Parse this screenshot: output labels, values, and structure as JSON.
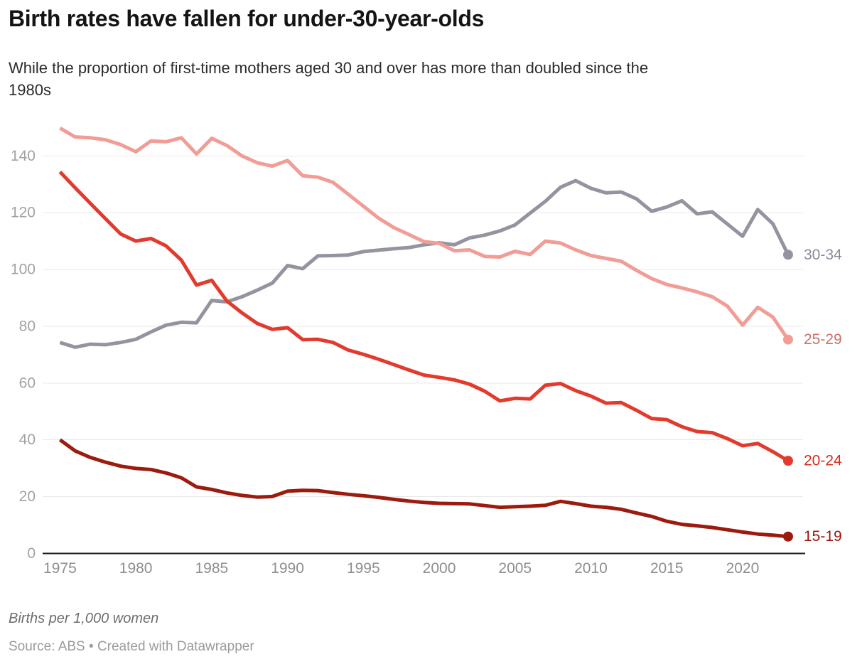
{
  "header": {
    "title": "Birth rates have fallen for under-30-year-olds",
    "subtitle_line1": "While the proportion of first-time mothers aged 30 and over has more than doubled since the",
    "subtitle_line2": "1980s"
  },
  "footer": {
    "note": "Births per 1,000 women",
    "source": "Source: ABS • Created with Datawrapper"
  },
  "chart_data": {
    "type": "line",
    "title": "Birth rates have fallen for under-30-year-olds",
    "subtitle": "While the proportion of first-time mothers aged 30 and over has more than doubled since the 1980s",
    "ylabel": "Births per 1,000 women",
    "xlabel": "",
    "grid": true,
    "legend_position": "end-of-line-labels",
    "ylim": [
      0,
      150
    ],
    "xlim": [
      1975,
      2023
    ],
    "yticks": [
      0,
      20,
      40,
      60,
      80,
      100,
      120,
      140
    ],
    "xticks": [
      1975,
      1980,
      1985,
      1990,
      1995,
      2000,
      2005,
      2010,
      2015,
      2020
    ],
    "x": [
      1975,
      1976,
      1977,
      1978,
      1979,
      1980,
      1981,
      1982,
      1983,
      1984,
      1985,
      1986,
      1987,
      1988,
      1989,
      1990,
      1991,
      1992,
      1993,
      1994,
      1995,
      1996,
      1997,
      1998,
      1999,
      2000,
      2001,
      2002,
      2003,
      2004,
      2005,
      2006,
      2007,
      2008,
      2009,
      2010,
      2011,
      2012,
      2013,
      2014,
      2015,
      2016,
      2017,
      2018,
      2019,
      2020,
      2021,
      2022,
      2023
    ],
    "series": [
      {
        "name": "30-34",
        "color": "#95939f",
        "label_color": "#8a8899",
        "values": [
          74.3,
          72.6,
          73.7,
          73.5,
          74.3,
          75.4,
          78.0,
          80.4,
          81.4,
          81.2,
          89.1,
          88.6,
          90.4,
          92.7,
          95.2,
          101.4,
          100.3,
          104.8,
          104.9,
          105.1,
          106.3,
          106.8,
          107.3,
          107.7,
          108.7,
          109.4,
          108.7,
          111.1,
          112.1,
          113.6,
          115.7,
          119.9,
          124.0,
          129.0,
          131.3,
          128.6,
          127.0,
          127.3,
          124.9,
          120.5,
          122.0,
          124.2,
          119.6,
          120.3,
          116.0,
          111.7,
          121.1,
          116.1,
          105.2
        ]
      },
      {
        "name": "25-29",
        "color": "#f19d96",
        "label_color": "#ce6f66",
        "values": [
          149.8,
          146.7,
          146.4,
          145.7,
          144.0,
          141.5,
          145.3,
          145.0,
          146.4,
          140.7,
          146.2,
          143.7,
          140.0,
          137.6,
          136.4,
          138.4,
          133.0,
          132.5,
          130.7,
          126.5,
          122.3,
          118.1,
          114.8,
          112.3,
          109.8,
          109.2,
          106.6,
          106.9,
          104.6,
          104.4,
          106.4,
          105.3,
          110.0,
          109.3,
          106.9,
          104.9,
          103.9,
          102.9,
          99.7,
          96.8,
          94.7,
          93.5,
          92.1,
          90.4,
          87.1,
          80.4,
          86.7,
          83.2,
          75.3
        ]
      },
      {
        "name": "20-24",
        "color": "#e23b2e",
        "label_color": "#d92c20",
        "values": [
          134.4,
          128.8,
          123.3,
          117.9,
          112.5,
          110.0,
          110.9,
          108.3,
          103.3,
          94.5,
          96.2,
          88.9,
          84.7,
          81.0,
          78.9,
          79.5,
          75.3,
          75.4,
          74.3,
          71.6,
          70.1,
          68.4,
          66.5,
          64.6,
          62.8,
          62.0,
          61.1,
          59.6,
          57.1,
          53.7,
          54.6,
          54.4,
          59.2,
          59.8,
          57.3,
          55.4,
          52.9,
          53.1,
          50.4,
          47.5,
          47.1,
          44.6,
          42.9,
          42.5,
          40.4,
          37.9,
          38.7,
          35.8,
          32.6
        ]
      },
      {
        "name": "15-19",
        "color": "#9c1b0e",
        "label_color": "#99150b",
        "values": [
          40.0,
          36.1,
          33.8,
          32.1,
          30.7,
          29.9,
          29.5,
          28.3,
          26.6,
          23.4,
          22.5,
          21.3,
          20.4,
          19.8,
          20.0,
          21.9,
          22.2,
          22.1,
          21.4,
          20.8,
          20.3,
          19.7,
          19.0,
          18.4,
          17.9,
          17.6,
          17.5,
          17.4,
          16.8,
          16.2,
          16.4,
          16.6,
          16.9,
          18.3,
          17.5,
          16.6,
          16.2,
          15.5,
          14.2,
          13.0,
          11.3,
          10.2,
          9.7,
          9.1,
          8.3,
          7.5,
          6.8,
          6.4,
          5.9
        ]
      }
    ]
  }
}
